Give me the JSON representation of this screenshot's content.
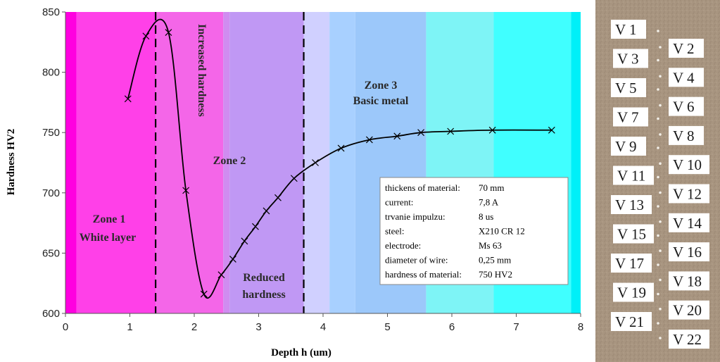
{
  "chart_data": {
    "type": "line",
    "xlabel": "Depth h (um)",
    "ylabel": "Hardness HV2",
    "xlim": [
      0,
      8
    ],
    "ylim": [
      600,
      850
    ],
    "xticks": [
      "0",
      "1",
      "2",
      "3",
      "4",
      "5",
      "6",
      "7",
      "8"
    ],
    "yticks": [
      "600",
      "650",
      "700",
      "750",
      "800",
      "850"
    ],
    "grid": false,
    "series": [
      {
        "color": "#000000",
        "marker": "x",
        "points": [
          [
            0.97,
            778
          ],
          [
            1.25,
            830
          ],
          [
            1.6,
            833
          ],
          [
            1.87,
            702
          ],
          [
            2.15,
            616
          ],
          [
            2.42,
            632
          ],
          [
            2.6,
            645
          ],
          [
            2.78,
            660
          ],
          [
            2.95,
            672
          ],
          [
            3.12,
            685
          ],
          [
            3.3,
            696
          ],
          [
            3.55,
            712
          ],
          [
            3.88,
            725
          ],
          [
            4.28,
            737
          ],
          [
            4.72,
            744
          ],
          [
            5.15,
            747
          ],
          [
            5.52,
            750
          ],
          [
            5.98,
            751
          ],
          [
            6.63,
            752
          ],
          [
            7.55,
            752
          ]
        ]
      }
    ],
    "dashed_lines_x": [
      1.4,
      3.7
    ],
    "zone_labels": {
      "zone1_line1": "Zone 1",
      "zone1_line2": "White layer",
      "increased": "Increased hardness",
      "zone2": "Zone 2",
      "reduced_line1": "Reduced",
      "reduced_line2": "hardness",
      "zone3_line1": "Zone 3",
      "zone3_line2": "Basic metal"
    },
    "info_box": [
      [
        "thickens of material:",
        "70 mm"
      ],
      [
        "current:",
        "7,8 A"
      ],
      [
        "trvanie impulzu:",
        "8 us"
      ],
      [
        "steel:",
        "X210 CR 12"
      ],
      [
        "electrode:",
        "Ms 63"
      ],
      [
        "diameter of wire:",
        "0,25 mm"
      ],
      [
        "hardness of material:",
        "750 HV2"
      ]
    ],
    "colors": {
      "bands": [
        "#ff00e0",
        "#ff40e8",
        "#f466e8",
        "#d08cf0",
        "#c098f4",
        "#d0d0ff",
        "#a8d0ff",
        "#9cc8fa",
        "#7ef4f6",
        "#40ffff",
        "#00f0f8"
      ]
    }
  },
  "sample_photo": {
    "labels_left": [
      "V 1",
      "V 3",
      "V 5",
      "V 7",
      "V 9",
      "V 11",
      "V 13",
      "V 15",
      "V 17",
      "V 19",
      "V 21"
    ],
    "labels_right": [
      "V 2",
      "V 4",
      "V 6",
      "V 8",
      "V 10",
      "V 12",
      "V 14",
      "V 16",
      "V 18",
      "V 20",
      "V 22"
    ],
    "background_color": "#a89580"
  }
}
